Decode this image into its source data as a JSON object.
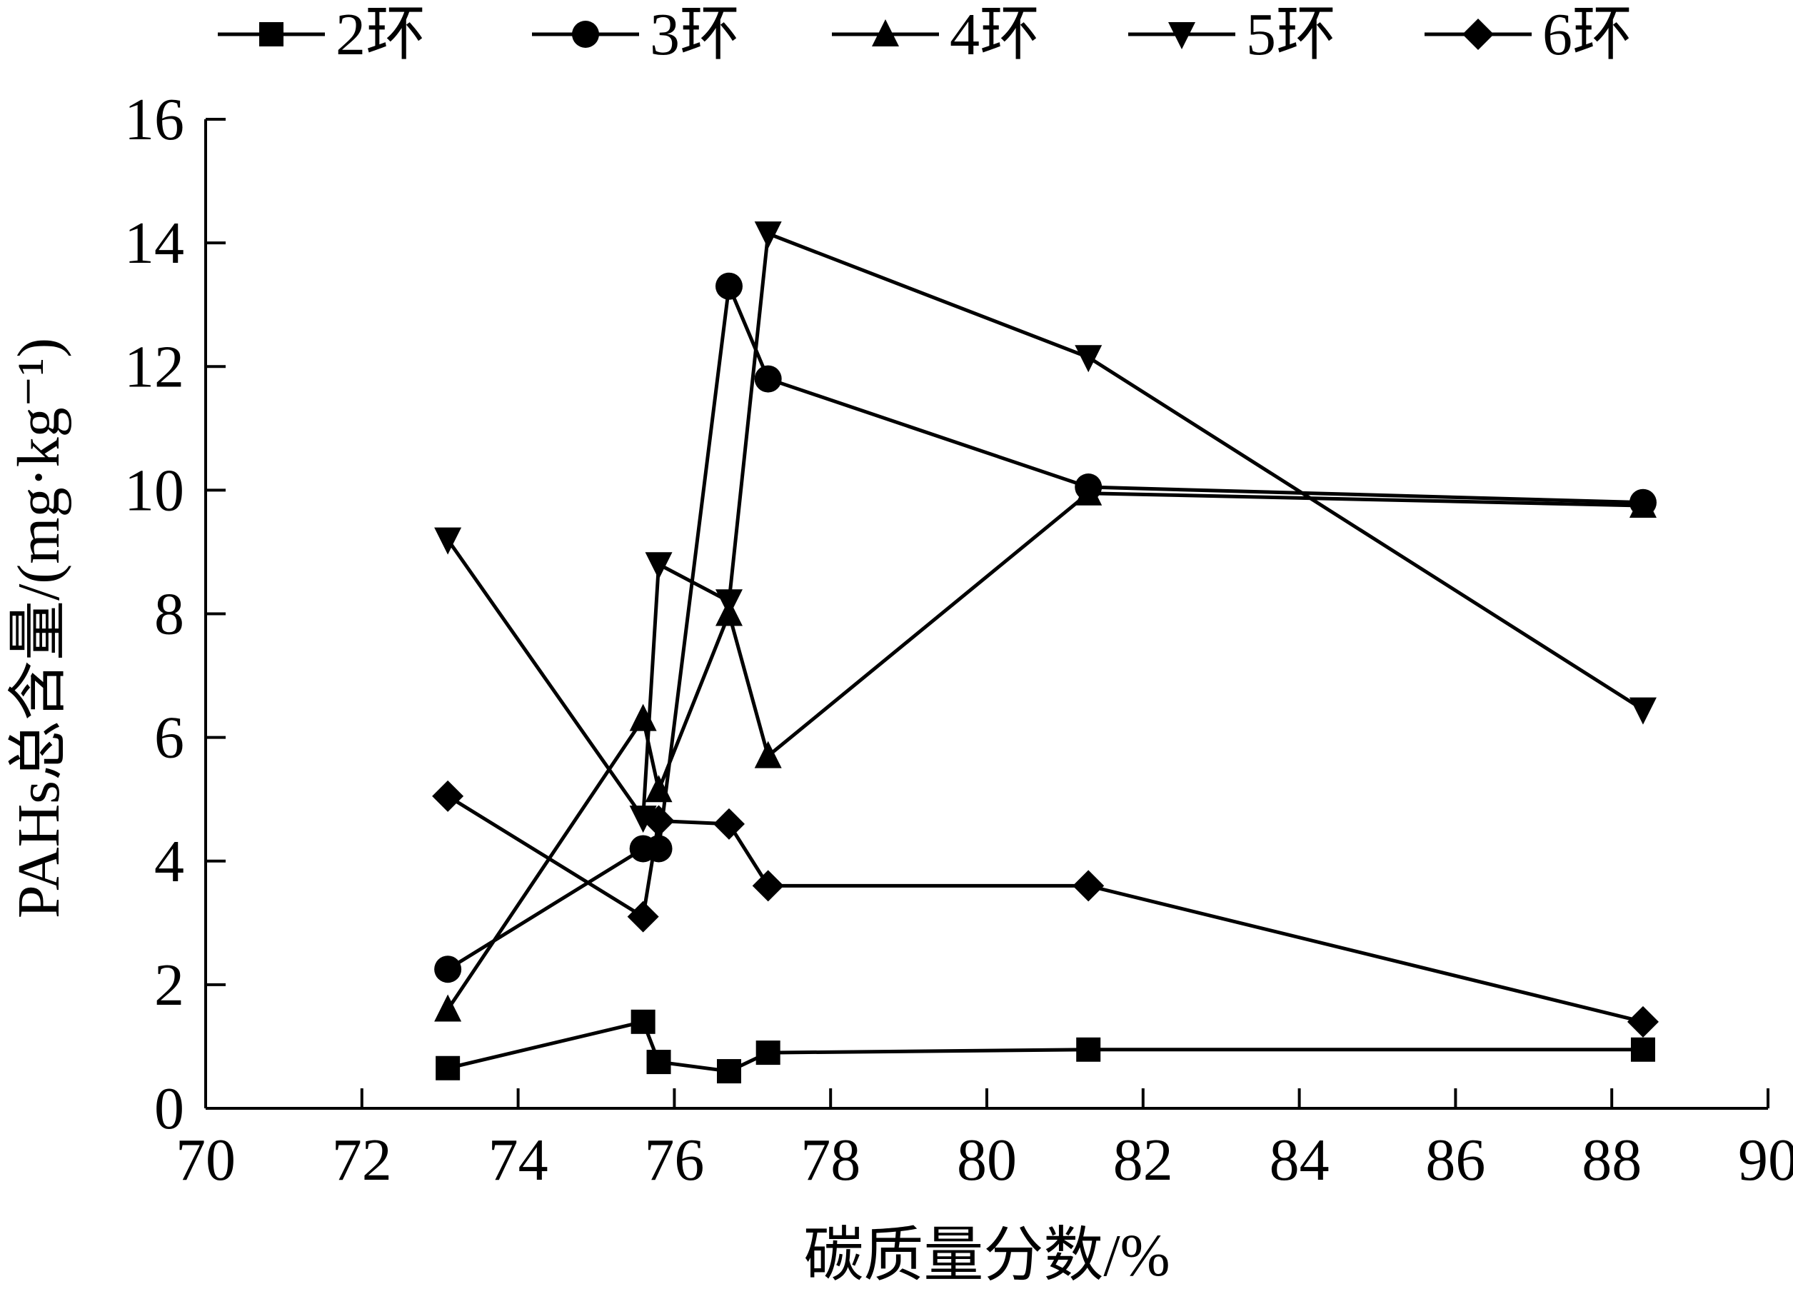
{
  "chart_data": {
    "type": "line",
    "title": "",
    "xlabel": "碳质量分数/%",
    "ylabel": "PAHs总含量/(mg·kg⁻¹)",
    "xlim": [
      70,
      90
    ],
    "ylim": [
      0,
      16
    ],
    "xticks": [
      70,
      72,
      74,
      76,
      78,
      80,
      82,
      84,
      86,
      88,
      90
    ],
    "yticks": [
      0,
      2,
      4,
      6,
      8,
      10,
      12,
      14,
      16
    ],
    "grid": false,
    "legend_position": "top",
    "series": [
      {
        "name": "2环",
        "marker": "square",
        "x": [
          73.1,
          75.6,
          75.8,
          76.7,
          77.2,
          81.3,
          88.4
        ],
        "y": [
          0.65,
          1.4,
          0.75,
          0.6,
          0.9,
          0.95,
          0.95
        ]
      },
      {
        "name": "3环",
        "marker": "circle",
        "x": [
          73.1,
          75.6,
          75.8,
          76.7,
          77.2,
          81.3,
          88.4
        ],
        "y": [
          2.25,
          4.2,
          4.2,
          13.3,
          11.8,
          10.05,
          9.8
        ]
      },
      {
        "name": "4环",
        "marker": "triangle-up",
        "x": [
          73.1,
          75.6,
          75.8,
          76.7,
          77.2,
          81.3,
          88.4
        ],
        "y": [
          1.6,
          6.3,
          5.15,
          8.0,
          5.7,
          9.95,
          9.75
        ]
      },
      {
        "name": "5环",
        "marker": "triangle-down",
        "x": [
          73.1,
          75.6,
          75.8,
          76.7,
          77.2,
          81.3,
          88.4
        ],
        "y": [
          9.2,
          4.7,
          8.8,
          8.2,
          14.15,
          12.15,
          6.45
        ]
      },
      {
        "name": "6环",
        "marker": "diamond",
        "x": [
          73.1,
          75.6,
          75.8,
          76.7,
          77.2,
          81.3,
          88.4
        ],
        "y": [
          5.05,
          3.1,
          4.65,
          4.6,
          3.6,
          3.6,
          1.4
        ]
      }
    ]
  }
}
